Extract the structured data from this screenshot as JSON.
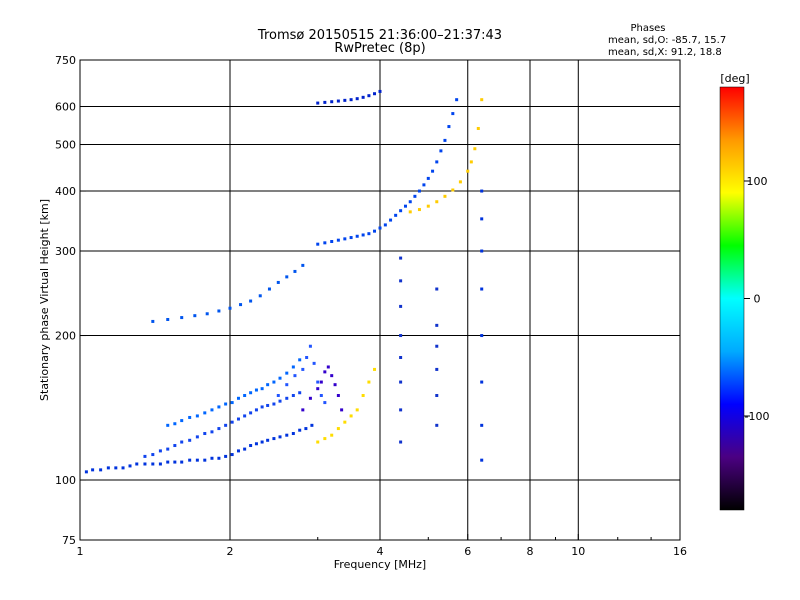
{
  "chart_data": {
    "type": "scatter",
    "title": "Tromsø 20150515 21:36:00–21:37:43",
    "subtitle": "RwPretec (8p)",
    "xlabel": "Frequency [MHz]",
    "ylabel": "Stationary phase Virtual Height [km]",
    "x_scale": "log",
    "y_scale": "log",
    "xlim": [
      1,
      16
    ],
    "ylim": [
      75,
      750
    ],
    "x_ticks": [
      1,
      2,
      4,
      6,
      8,
      10,
      16
    ],
    "y_ticks": [
      75,
      100,
      200,
      300,
      400,
      500,
      600,
      750
    ],
    "grid": true,
    "stats": {
      "heading": "Phases",
      "line_o": "mean, sd,O: -85.7, 15.7",
      "line_x": "mean, sd,X:  91.2, 18.8"
    },
    "colorbar": {
      "label": "[deg]",
      "range": [
        -180,
        180
      ],
      "ticks": [
        100,
        0,
        -100
      ],
      "colors": [
        "#000000",
        "#4b0082",
        "#0000ff",
        "#00aaff",
        "#00ffff",
        "#00ff00",
        "#ffff00",
        "#ff9900",
        "#ff0000"
      ]
    },
    "series": [
      {
        "color": "#0033dd",
        "x": [
          1.03,
          1.06,
          1.1,
          1.14,
          1.18,
          1.22,
          1.26,
          1.3,
          1.35,
          1.4,
          1.45,
          1.5,
          1.55,
          1.6,
          1.66,
          1.72,
          1.78,
          1.84,
          1.9,
          1.96,
          2.02,
          2.08,
          2.14,
          2.2,
          2.26,
          2.32,
          2.38,
          2.45,
          2.52,
          2.6,
          2.68,
          2.76,
          2.84,
          2.92
        ],
        "y": [
          104,
          105,
          105,
          106,
          106,
          106,
          107,
          108,
          108,
          108,
          108,
          109,
          109,
          109,
          110,
          110,
          110,
          111,
          111,
          112,
          113,
          115,
          116,
          118,
          119,
          120,
          121,
          122,
          123,
          124,
          125,
          127,
          128,
          130
        ]
      },
      {
        "color": "#1144ee",
        "x": [
          1.35,
          1.4,
          1.45,
          1.5,
          1.55,
          1.6,
          1.66,
          1.72,
          1.78,
          1.84,
          1.9,
          1.96,
          2.02,
          2.08,
          2.14,
          2.2,
          2.26,
          2.32,
          2.38,
          2.45,
          2.52,
          2.6,
          2.68,
          2.76
        ],
        "y": [
          112,
          113,
          115,
          116,
          118,
          120,
          121,
          123,
          125,
          126,
          128,
          130,
          132,
          134,
          136,
          138,
          140,
          142,
          143,
          144,
          146,
          148,
          150,
          152
        ]
      },
      {
        "color": "#0066ff",
        "x": [
          1.5,
          1.55,
          1.6,
          1.66,
          1.72,
          1.78,
          1.84,
          1.9,
          1.96,
          2.02,
          2.08,
          2.14,
          2.2,
          2.26,
          2.32,
          2.38,
          2.45,
          2.52,
          2.6,
          2.68,
          2.76
        ],
        "y": [
          130,
          131,
          133,
          135,
          136,
          138,
          140,
          142,
          144,
          145,
          148,
          150,
          152,
          154,
          155,
          158,
          160,
          163,
          167,
          172,
          178
        ]
      },
      {
        "color": "#2255ff",
        "x": [
          2.5,
          2.6,
          2.7,
          2.8,
          2.85,
          2.9,
          2.95,
          3.0,
          3.05,
          3.1
        ],
        "y": [
          150,
          158,
          165,
          170,
          180,
          190,
          175,
          160,
          150,
          145
        ]
      },
      {
        "color": "#3300cc",
        "x": [
          2.8,
          2.9,
          3.0,
          3.05,
          3.1,
          3.15,
          3.2,
          3.25,
          3.3,
          3.35
        ],
        "y": [
          140,
          148,
          155,
          160,
          168,
          172,
          165,
          158,
          150,
          140
        ]
      },
      {
        "color": "#ffdd00",
        "x": [
          3.0,
          3.1,
          3.2,
          3.3,
          3.4,
          3.5,
          3.6,
          3.7,
          3.8,
          3.9
        ],
        "y": [
          120,
          122,
          124,
          128,
          132,
          136,
          140,
          150,
          160,
          170
        ]
      },
      {
        "color": "#0055ee",
        "x": [
          1.4,
          1.5,
          1.6,
          1.7,
          1.8,
          1.9,
          2.0,
          2.1,
          2.2,
          2.3,
          2.4,
          2.5,
          2.6,
          2.7,
          2.8
        ],
        "y": [
          214,
          216,
          218,
          220,
          222,
          225,
          228,
          232,
          236,
          242,
          250,
          258,
          265,
          272,
          280
        ]
      },
      {
        "color": "#0044ee",
        "x": [
          3.0,
          3.1,
          3.2,
          3.3,
          3.4,
          3.5,
          3.6,
          3.7,
          3.8,
          3.9,
          4.0,
          4.1,
          4.2,
          4.3,
          4.4,
          4.5,
          4.6,
          4.7,
          4.8,
          4.9,
          5.0,
          5.1,
          5.2,
          5.3,
          5.4,
          5.5,
          5.6,
          5.7
        ],
        "y": [
          310,
          312,
          314,
          316,
          318,
          320,
          322,
          324,
          326,
          330,
          335,
          340,
          348,
          356,
          364,
          372,
          380,
          390,
          400,
          412,
          425,
          440,
          460,
          485,
          510,
          545,
          580,
          620
        ]
      },
      {
        "color": "#ffcc00",
        "x": [
          4.6,
          4.8,
          5.0,
          5.2,
          5.4,
          5.6,
          5.8,
          6.0,
          6.1,
          6.2,
          6.3,
          6.4
        ],
        "y": [
          362,
          366,
          372,
          380,
          390,
          402,
          418,
          440,
          460,
          490,
          540,
          620
        ]
      },
      {
        "color": "#0022cc",
        "x": [
          3.0,
          3.1,
          3.2,
          3.3,
          3.4,
          3.5,
          3.6,
          3.7,
          3.8,
          3.9,
          4.0
        ],
        "y": [
          610,
          612,
          614,
          616,
          618,
          620,
          623,
          627,
          632,
          638,
          645
        ]
      },
      {
        "color": "#1133cc",
        "x": [
          4.4,
          4.4,
          4.4,
          4.4,
          4.4,
          4.4,
          4.4,
          4.4,
          5.2,
          5.2,
          5.2,
          5.2,
          5.2,
          5.2
        ],
        "y": [
          120,
          140,
          160,
          180,
          200,
          230,
          260,
          290,
          130,
          150,
          170,
          190,
          210,
          250
        ]
      },
      {
        "color": "#0033dd",
        "x": [
          6.4,
          6.4,
          6.4,
          6.4,
          6.4,
          6.4,
          6.4,
          6.4
        ],
        "y": [
          110,
          130,
          160,
          200,
          250,
          300,
          350,
          400
        ]
      }
    ]
  }
}
